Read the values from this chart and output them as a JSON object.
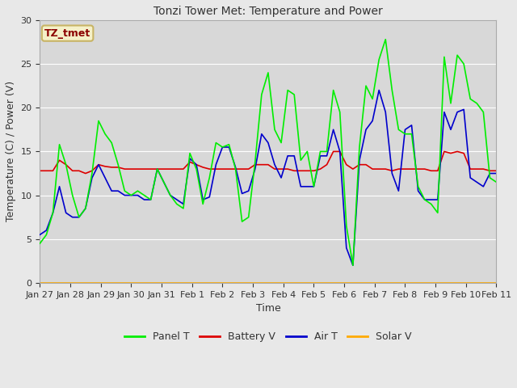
{
  "title": "Tonzi Tower Met: Temperature and Power",
  "xlabel": "Time",
  "ylabel": "Temperature (C) / Power (V)",
  "ylim": [
    0,
    30
  ],
  "fig_bg_color": "#e8e8e8",
  "plot_bg_color": "#d8d8d8",
  "annotation_text": "TZ_tmet",
  "annotation_color": "#8b0000",
  "annotation_bg": "#f5f0c8",
  "annotation_edge": "#c8b464",
  "legend_entries": [
    "Panel T",
    "Battery V",
    "Air T",
    "Solar V"
  ],
  "legend_colors": [
    "#00ee00",
    "#dd0000",
    "#0000cc",
    "#ffaa00"
  ],
  "x_tick_labels": [
    "Jan 27",
    "Jan 28",
    "Jan 29",
    "Jan 30",
    "Jan 31",
    "Feb 1",
    "Feb 2",
    "Feb 3",
    "Feb 4",
    "Feb 5",
    "Feb 6",
    "Feb 7",
    "Feb 8",
    "Feb 9",
    "Feb 10",
    "Feb 11"
  ],
  "yticks": [
    0,
    5,
    10,
    15,
    20,
    25,
    30
  ],
  "panel_t": [
    4.5,
    5.5,
    8.0,
    15.8,
    13.5,
    10.0,
    7.5,
    8.5,
    12.5,
    18.5,
    17.0,
    16.0,
    13.5,
    10.5,
    10.0,
    10.5,
    10.0,
    9.5,
    13.0,
    11.5,
    10.0,
    9.0,
    8.5,
    14.8,
    13.0,
    9.0,
    12.0,
    16.0,
    15.5,
    15.8,
    13.0,
    7.0,
    7.5,
    13.8,
    21.5,
    24.0,
    17.5,
    16.0,
    22.0,
    21.5,
    14.0,
    15.0,
    11.0,
    15.0,
    15.0,
    22.0,
    19.5,
    6.5,
    2.0,
    15.5,
    22.5,
    21.0,
    25.5,
    27.8,
    22.0,
    17.5,
    17.0,
    17.0,
    11.0,
    9.5,
    9.0,
    8.0,
    25.8,
    20.5,
    26.0,
    25.0,
    21.0,
    20.5,
    19.5,
    12.0,
    11.5
  ],
  "battery_v": [
    12.8,
    12.8,
    12.8,
    14.0,
    13.5,
    12.8,
    12.8,
    12.5,
    12.8,
    13.5,
    13.3,
    13.2,
    13.2,
    13.0,
    13.0,
    13.0,
    13.0,
    13.0,
    13.0,
    13.0,
    13.0,
    13.0,
    13.0,
    13.8,
    13.5,
    13.2,
    13.0,
    13.0,
    13.0,
    13.0,
    13.0,
    13.0,
    13.0,
    13.5,
    13.5,
    13.5,
    13.0,
    13.0,
    13.0,
    12.8,
    12.8,
    12.8,
    12.8,
    13.0,
    13.5,
    15.0,
    15.0,
    13.5,
    13.0,
    13.5,
    13.5,
    13.0,
    13.0,
    13.0,
    12.8,
    13.0,
    13.0,
    13.0,
    13.0,
    13.0,
    12.8,
    12.8,
    15.0,
    14.8,
    15.0,
    14.8,
    13.0,
    13.0,
    13.0,
    12.8,
    12.8
  ],
  "air_t": [
    5.5,
    6.0,
    8.0,
    11.0,
    8.0,
    7.5,
    7.5,
    8.5,
    12.0,
    13.5,
    12.0,
    10.5,
    10.5,
    10.0,
    10.0,
    10.0,
    9.5,
    9.5,
    13.0,
    11.5,
    10.0,
    9.5,
    9.0,
    14.2,
    13.5,
    9.5,
    9.8,
    13.5,
    15.5,
    15.5,
    13.2,
    10.2,
    10.5,
    13.0,
    17.0,
    16.0,
    13.5,
    12.0,
    14.5,
    14.5,
    11.0,
    11.0,
    11.0,
    14.5,
    14.5,
    17.5,
    15.0,
    4.0,
    2.0,
    14.0,
    17.5,
    18.5,
    22.0,
    19.5,
    12.5,
    10.5,
    17.5,
    18.0,
    10.5,
    9.5,
    9.5,
    9.5,
    19.5,
    17.5,
    19.5,
    19.8,
    12.0,
    11.5,
    11.0,
    12.5,
    12.5
  ],
  "solar_v": [
    0.0,
    0.0,
    0.0,
    0.0,
    0.0,
    0.0,
    0.0,
    0.0,
    0.0,
    0.0,
    0.0,
    0.0,
    0.0,
    0.0,
    0.0,
    0.0,
    0.0,
    0.0,
    0.0,
    0.0,
    0.0,
    0.0,
    0.0,
    0.0,
    0.0,
    0.0,
    0.0,
    0.0,
    0.0,
    0.0,
    0.0,
    0.0,
    0.0,
    0.0,
    0.0,
    0.0,
    0.0,
    0.0,
    0.0,
    0.0,
    0.0,
    0.0,
    0.0,
    0.0,
    0.0,
    0.0,
    0.0,
    0.0,
    0.0,
    0.0,
    0.0,
    0.0,
    0.0,
    0.0,
    0.0,
    0.0,
    0.0,
    0.0,
    0.0,
    0.0,
    0.0,
    0.0,
    0.0,
    0.0,
    0.0,
    0.0,
    0.0,
    0.0,
    0.0,
    0.0,
    0.0
  ],
  "grid_color": "#ffffff",
  "line_width": 1.2,
  "title_fontsize": 10,
  "tick_fontsize": 8,
  "label_fontsize": 9,
  "legend_fontsize": 9
}
